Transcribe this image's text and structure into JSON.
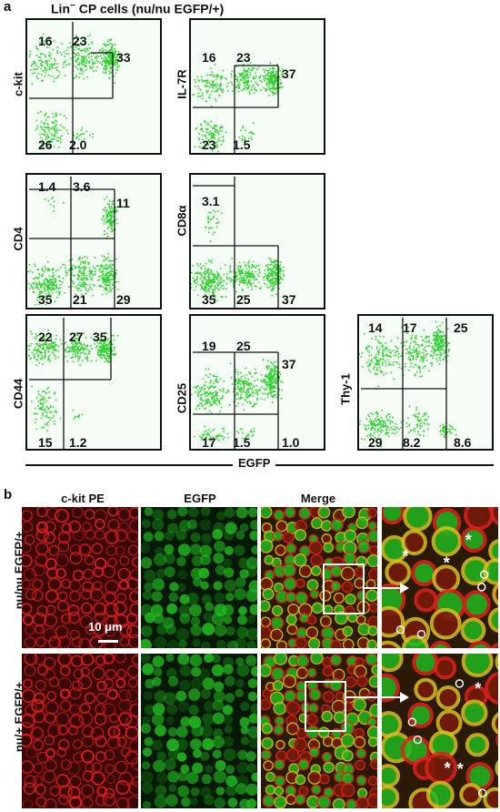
{
  "figure": {
    "panel_a_label": "a",
    "panel_a_title_prefix": "Lin",
    "panel_a_title_sup": "−",
    "panel_a_title_rest": " CP cells (nu/nu EGFP/+)",
    "x_axis_label": "EGFP",
    "panel_b_label": "b"
  },
  "plots": [
    {
      "ylabel": "c-kit",
      "values": [
        "16",
        "23",
        "33",
        "26",
        "2.0"
      ]
    },
    {
      "ylabel": "IL-7R",
      "values": [
        "16",
        "23",
        "37",
        "23",
        "1.5"
      ]
    },
    {
      "ylabel": "CD4",
      "values": [
        "1.4",
        "3.6",
        "11",
        "35",
        "21",
        "29"
      ]
    },
    {
      "ylabel": "CD8α",
      "values": [
        "3.1",
        "35",
        "25",
        "37"
      ]
    },
    {
      "ylabel": "CD44",
      "values": [
        "22",
        "27",
        "35",
        "15",
        "1.2"
      ]
    },
    {
      "ylabel": "CD25",
      "values": [
        "19",
        "25",
        "37",
        "17",
        "1.5",
        "1.0"
      ]
    },
    {
      "ylabel": "Thy-1",
      "values": [
        "14",
        "17",
        "25",
        "29",
        "8.2",
        "8.6"
      ]
    }
  ],
  "micro": {
    "columns": [
      "c-kit PE",
      "EGFP",
      "Merge"
    ],
    "rows": [
      "nu/nu EGFP/+",
      "nu/+ EGFP/+"
    ],
    "scale_bar": "10 μm",
    "colors": {
      "red": "#e0201c",
      "green": "#22b820",
      "merge_yellow": "#d8c020"
    }
  }
}
